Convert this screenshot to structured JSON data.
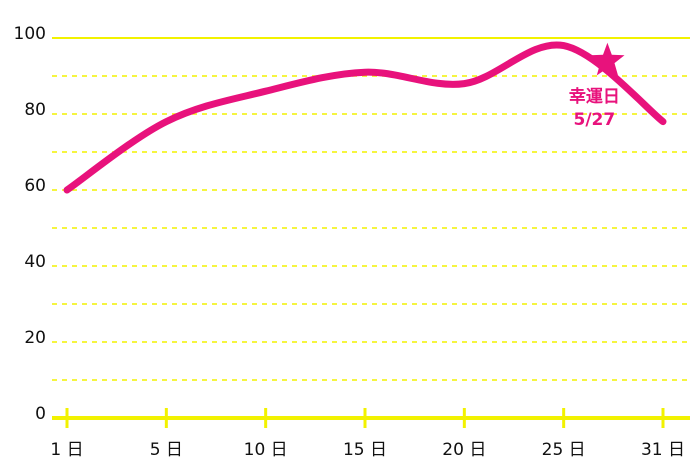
{
  "chart_data": {
    "type": "line",
    "categories": [
      "1 日",
      "5 日",
      "10 日",
      "15 日",
      "20 日",
      "25 日",
      "31 日"
    ],
    "values": [
      60,
      78,
      86,
      91,
      88,
      98,
      78
    ],
    "color": "#e8127c",
    "grid_color": "#f2f200",
    "ylim": [
      0,
      100
    ],
    "yticks": [
      0,
      20,
      40,
      60,
      80,
      100
    ],
    "minor_yticks": [
      10,
      30,
      50,
      70,
      90
    ],
    "grid": true,
    "annotation": {
      "label": "幸運日",
      "date": "5/27",
      "value": 94
    }
  }
}
